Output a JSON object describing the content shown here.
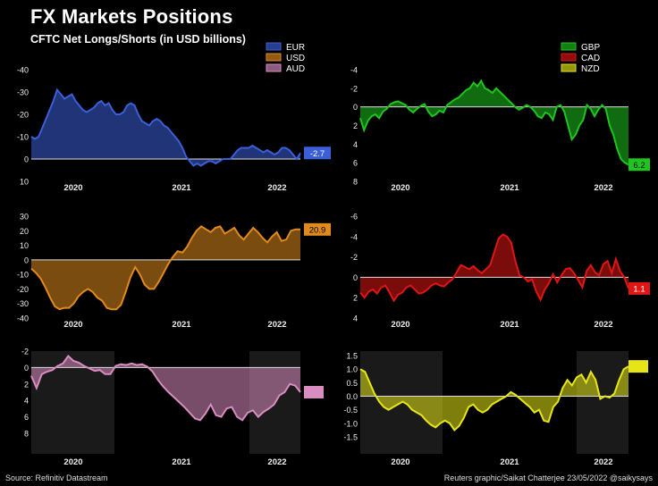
{
  "header": {
    "title": "FX Markets Positions",
    "subtitle": "CFTC Net Longs/Shorts (in USD billions)"
  },
  "footer": {
    "source": "Source: Refinitiv Datastream",
    "credit": "Reuters graphic/Saikat Chatterjee 23/05/2022 @saikysays"
  },
  "colors": {
    "EUR": "#3a5fd9",
    "USD": "#e08a1e",
    "AUD": "#d98cc0",
    "GBP": "#1fc41f",
    "CAD": "#e01515",
    "NZD": "#e6e617",
    "background": "#000000",
    "shade": "#1a1a1a"
  },
  "chart_data": [
    {
      "type": "area",
      "name": "EUR",
      "inverted_y": true,
      "ylim": [
        -40,
        10
      ],
      "yticks": [
        -40,
        -30,
        -20,
        -10,
        0,
        10
      ],
      "xticks": [
        "2020",
        "2021",
        "2022"
      ],
      "x_start": "2019-09",
      "x_end": "2022-05",
      "last_label": "-2.7",
      "values": [
        -10,
        -9,
        -10,
        -14,
        -18,
        -22,
        -26,
        -31,
        -29,
        -27,
        -28,
        -29,
        -26,
        -24,
        -22,
        -21,
        -22,
        -23,
        -25,
        -26,
        -24,
        -25,
        -22,
        -20,
        -20,
        -21,
        -24,
        -25,
        -24,
        -20,
        -17,
        -16,
        -15,
        -17,
        -18,
        -17,
        -15,
        -14,
        -12,
        -10,
        -8,
        -5,
        -1,
        1,
        3,
        2,
        3,
        2,
        1,
        1,
        2,
        1,
        0,
        0,
        0,
        -2,
        -4,
        -5,
        -5,
        -5,
        -6,
        -5,
        -4,
        -3,
        -4,
        -3,
        -2,
        -3,
        -5,
        -5,
        -4,
        -2,
        0,
        -2.7
      ]
    },
    {
      "type": "area",
      "name": "GBP",
      "inverted_y": true,
      "ylim": [
        -4,
        8
      ],
      "yticks": [
        -4,
        -2,
        0,
        2,
        4,
        6,
        8
      ],
      "xticks": [
        "2020",
        "2021",
        "2022"
      ],
      "x_start": "2019-09",
      "x_end": "2022-05",
      "last_label": "6.2",
      "values": [
        1.2,
        2.5,
        1.5,
        1,
        0.8,
        1.2,
        0.5,
        0.2,
        -0.3,
        -0.5,
        -0.6,
        -0.4,
        -0.2,
        0.3,
        0.6,
        0.2,
        -0.1,
        -0.3,
        0.5,
        1,
        0.8,
        0.4,
        0.6,
        -0.2,
        -0.5,
        -0.8,
        -1,
        -1.4,
        -1.8,
        -2,
        -2.6,
        -2.2,
        -2.8,
        -2,
        -1.8,
        -1.5,
        -2,
        -1.6,
        -1.2,
        -0.8,
        -0.4,
        0,
        0.3,
        0.1,
        -0.2,
        0,
        0.4,
        1,
        1.2,
        0.6,
        0.8,
        1.4,
        0,
        -0.2,
        0.5,
        2,
        3.5,
        3,
        2,
        1.4,
        -0.2,
        0.2,
        1,
        0.3,
        -0.2,
        0.2,
        2,
        3,
        4.5,
        5.6,
        6,
        6.2
      ]
    },
    {
      "type": "area",
      "name": "USD",
      "inverted_y": false,
      "ylim": [
        -40,
        30
      ],
      "yticks": [
        30,
        20,
        10,
        0,
        -10,
        -20,
        -30,
        -40
      ],
      "xticks": [
        "2020",
        "2021",
        "2022"
      ],
      "x_start": "2019-09",
      "x_end": "2022-05",
      "last_label": "20.9",
      "values": [
        -6,
        -9,
        -13,
        -19,
        -26,
        -32,
        -34,
        -33,
        -33,
        -30,
        -25,
        -22,
        -20,
        -22,
        -26,
        -28,
        -33,
        -34,
        -34,
        -31,
        -22,
        -12,
        -5,
        -10,
        -17,
        -20,
        -20,
        -15,
        -9,
        -3,
        2,
        6,
        5,
        9,
        15,
        20,
        23,
        21,
        19,
        22,
        23,
        18,
        20,
        22,
        17,
        14,
        18,
        22,
        19,
        15,
        12,
        16,
        19,
        13,
        14,
        20,
        21,
        20.9
      ]
    },
    {
      "type": "area",
      "name": "CAD",
      "inverted_y": true,
      "ylim": [
        -6,
        4
      ],
      "yticks": [
        -6,
        -4,
        -2,
        0,
        2,
        4
      ],
      "xticks": [
        "2020",
        "2021",
        "2022"
      ],
      "x_start": "2019-09",
      "x_end": "2022-05",
      "last_label": "1.1",
      "values": [
        1.5,
        2,
        1.4,
        1.2,
        1.6,
        1,
        0.8,
        1.5,
        2.3,
        1.7,
        1.5,
        1,
        0.8,
        1.2,
        1.6,
        1.5,
        1.2,
        0.8,
        0.6,
        0.8,
        0.9,
        0.5,
        0.2,
        -0.5,
        -1.2,
        -1,
        -0.8,
        -1.1,
        -0.7,
        -0.4,
        -0.8,
        -1.2,
        -2.5,
        -3.8,
        -4.2,
        -4,
        -3.4,
        -1.6,
        -0.2,
        0,
        0.4,
        0.2,
        1.4,
        2.2,
        1.2,
        0.6,
        -0.3,
        0.5,
        -0.2,
        -0.8,
        -0.9,
        -0.4,
        0.3,
        1,
        -0.6,
        -1.2,
        -0.5,
        -0.2,
        -1.3,
        -1.6,
        -0.4,
        -1.8,
        -0.6,
        0,
        1.1
      ]
    },
    {
      "type": "area",
      "name": "AUD",
      "inverted_y": true,
      "ylim": [
        -2,
        8
      ],
      "yticks": [
        -2,
        0,
        2,
        4,
        6,
        8
      ],
      "xticks": [
        "2020",
        "2021",
        "2022"
      ],
      "x_start": "2019-09",
      "x_end": "2022-05",
      "last_label": "",
      "values": [
        1,
        2.5,
        0.8,
        0.5,
        0.3,
        -0.2,
        -0.5,
        -1.4,
        -0.8,
        -0.6,
        -0.2,
        0.1,
        0.4,
        0.3,
        0.8,
        0.8,
        -0.2,
        -0.4,
        -0.3,
        -0.5,
        -0.3,
        -0.4,
        -0.1,
        0.5,
        1.5,
        2.3,
        3,
        3.6,
        4.2,
        4.8,
        5.5,
        6.2,
        6.4,
        5.6,
        4.5,
        5.8,
        6,
        5,
        4.8,
        6,
        6.4,
        5.5,
        5.2,
        6,
        5.4,
        5,
        4.5,
        3.4,
        3,
        2,
        2.2,
        3
      ]
    },
    {
      "type": "area",
      "name": "NZD",
      "inverted_y": false,
      "ylim": [
        -1.5,
        1.5
      ],
      "yticks": [
        1.5,
        1.0,
        0.5,
        0.0,
        -0.5,
        -1.0,
        -1.5
      ],
      "xticks": [
        "2020",
        "2021",
        "2022"
      ],
      "x_start": "2019-09",
      "x_end": "2022-05",
      "last_label": "",
      "values": [
        1,
        0.9,
        0.5,
        0.1,
        -0.2,
        -0.4,
        -0.5,
        -0.4,
        -0.3,
        -0.2,
        -0.3,
        -0.5,
        -0.6,
        -0.7,
        -0.9,
        -1.05,
        -1.15,
        -1.0,
        -0.9,
        -1.0,
        -1.25,
        -1.1,
        -0.8,
        -0.4,
        -0.3,
        -0.5,
        -0.6,
        -0.5,
        -0.3,
        -0.2,
        -0.1,
        0,
        0.15,
        0.05,
        -0.1,
        -0.25,
        -0.4,
        -0.6,
        -0.5,
        -0.9,
        -0.95,
        -0.4,
        -0.2,
        0.3,
        0.6,
        0.4,
        0.7,
        0.8,
        0.5,
        0.9,
        0.6,
        -0.1,
        0,
        -0.05,
        0.1,
        0.6,
        1.0,
        1.1
      ]
    }
  ]
}
